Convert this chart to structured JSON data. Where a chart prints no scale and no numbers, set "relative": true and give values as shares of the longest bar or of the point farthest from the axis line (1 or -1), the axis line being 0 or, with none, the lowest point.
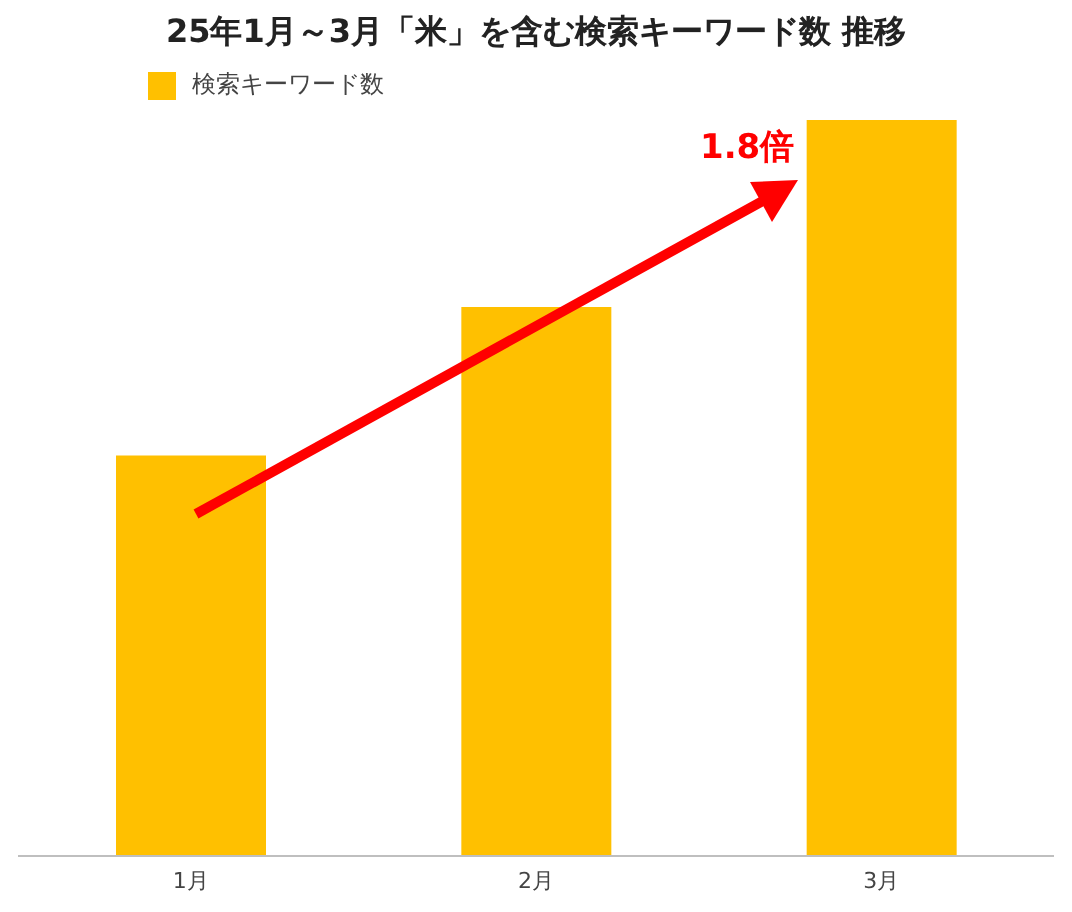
{
  "chart_data": {
    "type": "bar",
    "title": "25年1月～3月「米」を含む検索キーワード数 推移",
    "categories": [
      "1月",
      "2月",
      "3月"
    ],
    "series": [
      {
        "name": "検索キーワード数",
        "color": "#ffc000",
        "values": [
          0.544,
          0.746,
          1
        ]
      }
    ],
    "relative": true,
    "legend": "top left",
    "annotations": [
      "1.8倍"
    ]
  }
}
